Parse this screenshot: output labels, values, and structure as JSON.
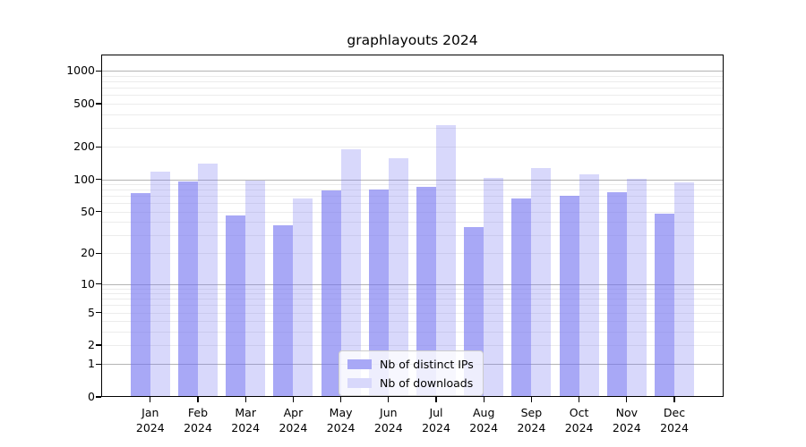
{
  "title": "graphlayouts 2024",
  "chart_data": {
    "type": "bar",
    "title": "graphlayouts 2024",
    "categories": [
      "Jan",
      "Feb",
      "Mar",
      "Apr",
      "May",
      "Jun",
      "Jul",
      "Aug",
      "Sep",
      "Oct",
      "Nov",
      "Dec"
    ],
    "year_label": "2024",
    "series": [
      {
        "name": "Nb of distinct IPs",
        "color": "rgba(115,115,240,0.62)",
        "legend_color": "#a8a8f6",
        "values": [
          74,
          96,
          46,
          37,
          78,
          80,
          85,
          36,
          66,
          70,
          76,
          48
        ]
      },
      {
        "name": "Nb of downloads",
        "color": "rgba(115,115,240,0.28)",
        "legend_color": "#d8d8fb",
        "values": [
          117,
          141,
          98,
          66,
          188,
          156,
          320,
          103,
          126,
          111,
          101,
          93
        ]
      }
    ],
    "yscale": "log1p",
    "ylim": [
      0,
      1450
    ],
    "y_ticks": [
      0,
      1,
      2,
      5,
      10,
      20,
      50,
      100,
      200,
      500,
      1000
    ],
    "major_gridlines": [
      1,
      10,
      100,
      1000
    ],
    "grid": true,
    "legend_position": "lower center",
    "colors": {
      "major_grid": "#b4b4b4",
      "minor_grid": "#ececec",
      "spine": "#000000",
      "background": "#ffffff"
    }
  }
}
